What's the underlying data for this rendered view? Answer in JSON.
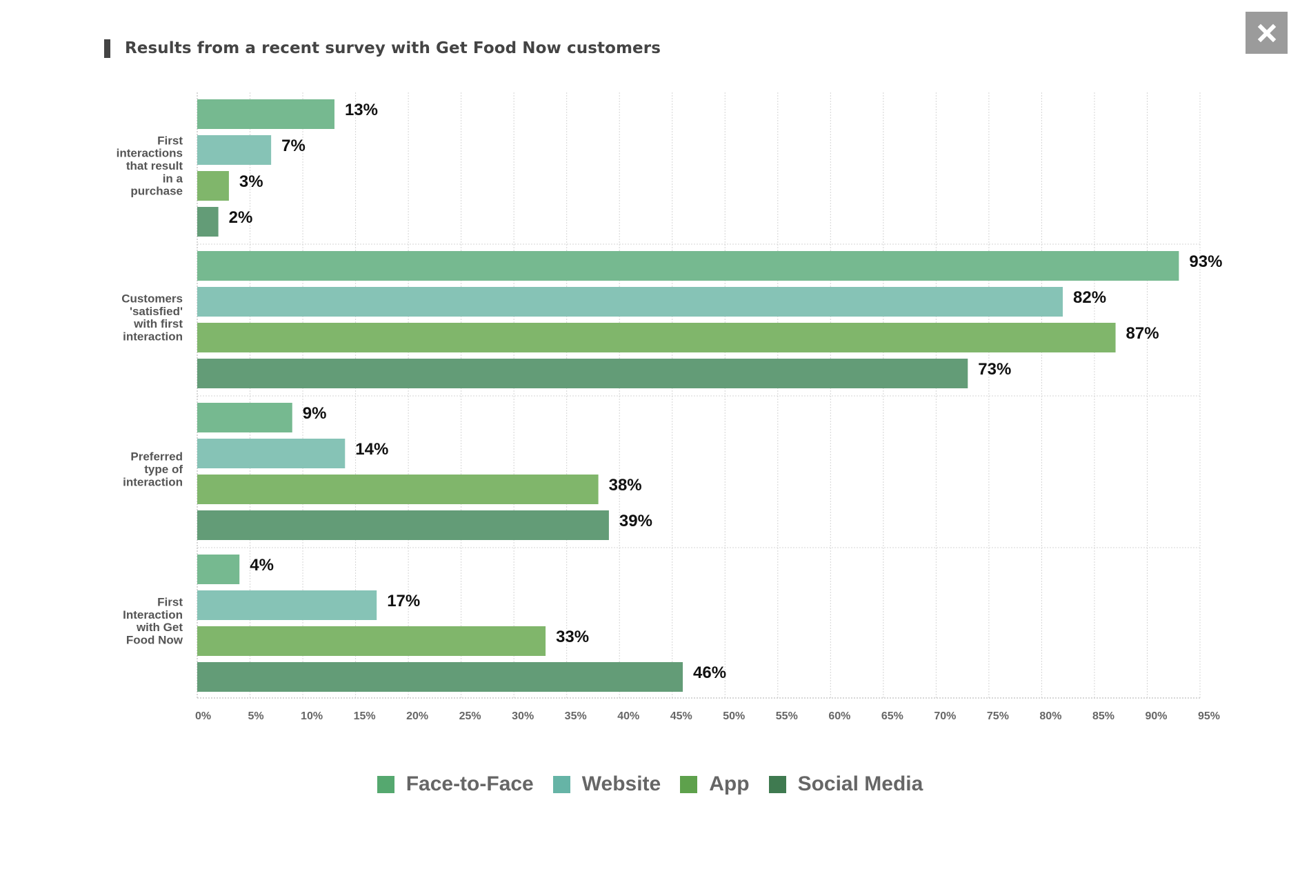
{
  "header": {
    "title": "Results from a recent survey with Get Food Now customers"
  },
  "close_button": {
    "icon": "close-icon",
    "label": "Close"
  },
  "colors": {
    "face_to_face": "#76b990",
    "website": "#86c3b6",
    "app": "#80b66b",
    "social_media": "#639c77",
    "legend_face_to_face": "#55a86f",
    "legend_website": "#66b4a6",
    "legend_app": "#5ea14c",
    "legend_social_media": "#3f7a50"
  },
  "chart_data": {
    "type": "bar",
    "orientation": "horizontal",
    "title": "Results from a recent survey with Get Food Now customers",
    "categories": [
      "First interactions that result in a purchase",
      "Customers 'satisfied' with first interaction",
      "Preferred type of interaction",
      "First Interaction with Get Food Now"
    ],
    "category_lines": [
      [
        "First",
        "interactions",
        "that result",
        "in a",
        "purchase"
      ],
      [
        "Customers",
        "'satisfied'",
        "with first",
        "interaction"
      ],
      [
        "Preferred",
        "type of",
        "interaction"
      ],
      [
        "First",
        "Interaction",
        "with Get",
        "Food Now"
      ]
    ],
    "series": [
      {
        "name": "Face-to-Face",
        "values": [
          13,
          93,
          9,
          4
        ]
      },
      {
        "name": "Website",
        "values": [
          7,
          82,
          14,
          17
        ]
      },
      {
        "name": "App",
        "values": [
          3,
          87,
          38,
          33
        ]
      },
      {
        "name": "Social Media",
        "values": [
          2,
          73,
          39,
          46
        ]
      }
    ],
    "value_suffix": "%",
    "xlim": [
      0,
      95
    ],
    "xticks": [
      0,
      5,
      10,
      15,
      20,
      25,
      30,
      35,
      40,
      45,
      50,
      55,
      60,
      65,
      70,
      75,
      80,
      85,
      90,
      95
    ],
    "xlabel": "",
    "ylabel": "",
    "grid": true,
    "legend_position": "bottom"
  },
  "legend": {
    "items": [
      {
        "label": "Face-to-Face"
      },
      {
        "label": "Website"
      },
      {
        "label": "App"
      },
      {
        "label": "Social Media"
      }
    ]
  }
}
